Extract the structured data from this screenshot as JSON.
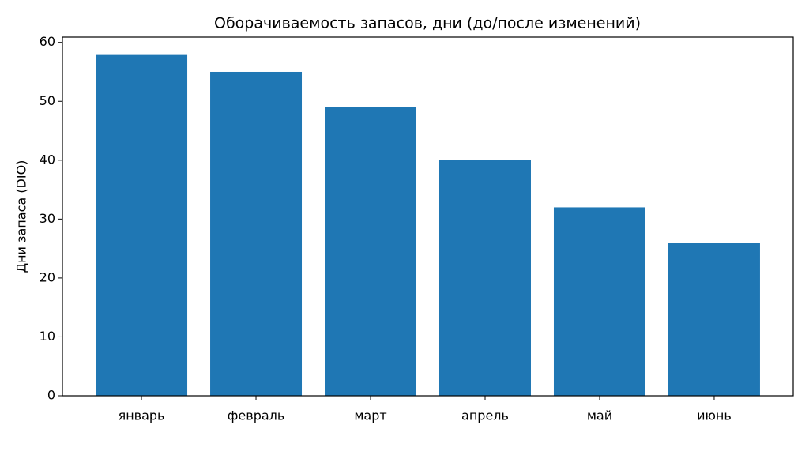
{
  "chart_data": {
    "type": "bar",
    "title": "Оборачиваемость запасов, дни (до/после изменений)",
    "y_label": "Дни запаса (DIO)",
    "categories": [
      "январь",
      "февраль",
      "март",
      "апрель",
      "май",
      "июнь"
    ],
    "values": [
      58,
      55,
      49,
      40,
      32,
      26
    ],
    "color": "#1f77b4",
    "ylim": [
      0,
      60.9
    ],
    "yticks": [
      0,
      10,
      20,
      30,
      40,
      50,
      60
    ],
    "grid": false
  }
}
